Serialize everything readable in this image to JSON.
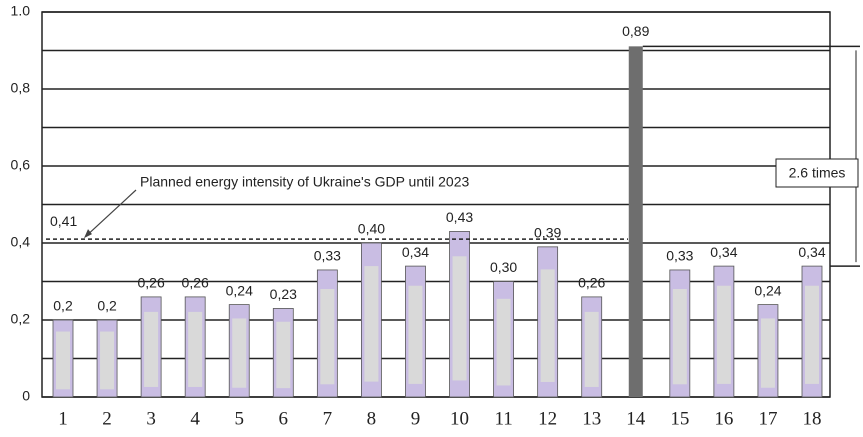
{
  "chart_data": {
    "type": "bar",
    "categories": [
      "1",
      "2",
      "3",
      "4",
      "5",
      "6",
      "7",
      "8",
      "9",
      "10",
      "11",
      "12",
      "13",
      "14",
      "15",
      "16",
      "17",
      "18"
    ],
    "values": [
      0.2,
      0.2,
      0.26,
      0.26,
      0.24,
      0.23,
      0.33,
      0.4,
      0.34,
      0.43,
      0.3,
      0.39,
      0.26,
      0.89,
      0.33,
      0.34,
      0.24,
      0.34
    ],
    "value_labels": [
      "0,2",
      "0,2",
      "0,26",
      "0,26",
      "0,24",
      "0,23",
      "0,33",
      "0,40",
      "0,34",
      "0,43",
      "0,30",
      "0,39",
      "0,26",
      "0,89",
      "0,33",
      "0,34",
      "0,24",
      "0,34"
    ],
    "color": "#c9bde3",
    "highlight_color": "#6e6e6e",
    "highlight_index": 13,
    "ylim": [
      0,
      1
    ],
    "yticks": [
      0,
      {
        "value": 0.2,
        "label": "0,2"
      },
      {
        "value": 0.4,
        "label": "0,4"
      },
      {
        "value": 0.6,
        "label": "0,6"
      },
      {
        "value": 0.8,
        "label": "0,8"
      },
      {
        "value": 1,
        "label": "1.0"
      }
    ],
    "minor_yticks": [
      0.1,
      0.3,
      0.5,
      0.7,
      0.9
    ],
    "grid": true,
    "reference_line": {
      "value": 0.41,
      "label": "0,41",
      "text": "Planned energy intensity of Ukraine's GDP until 2023"
    },
    "bracket": {
      "from": 0.89,
      "to": 0.34,
      "label": "2.6 times"
    }
  }
}
